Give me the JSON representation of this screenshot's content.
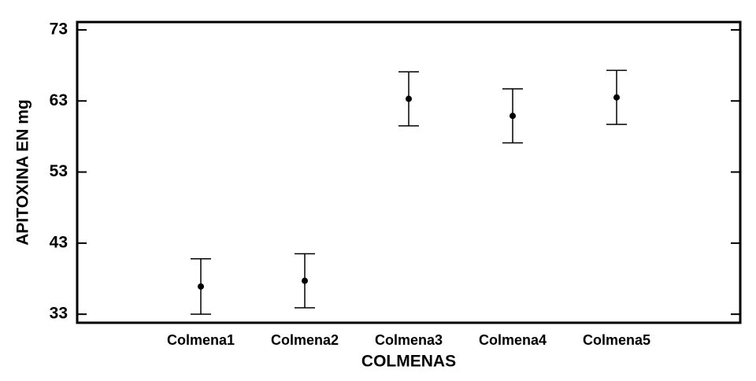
{
  "chart_data": {
    "type": "errorbar",
    "x_label": "COLMENAS",
    "y_label": "APITOXINA EN mg",
    "categories": [
      "Colmena1",
      "Colmena2",
      "Colmena3",
      "Colmena4",
      "Colmena5"
    ],
    "values": [
      36.9,
      37.7,
      63.3,
      60.9,
      63.5
    ],
    "errors": [
      3.9,
      3.8,
      3.8,
      3.8,
      3.8
    ],
    "color": "#000000",
    "ylim": [
      31.8,
      74.1
    ],
    "yticks": [
      33,
      43,
      53,
      63,
      73
    ]
  }
}
